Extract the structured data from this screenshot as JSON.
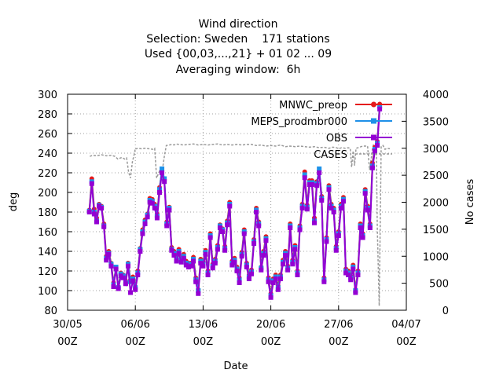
{
  "chart_data": {
    "type": "line",
    "title_lines": [
      "Wind direction",
      "Selection: Sweden    171 stations",
      "Used {00,03,...,21} + 01 02 ... 09",
      "Averaging window:  6h"
    ],
    "xlabel": "Date",
    "ylabel": "deg",
    "y2label": "No cases",
    "xlim": [
      0,
      35
    ],
    "ylim": [
      80,
      300
    ],
    "y2lim": [
      0,
      4000
    ],
    "x_ticks": [
      {
        "value": 0,
        "line1": "30/05",
        "line2": "00Z"
      },
      {
        "value": 7,
        "line1": "06/06",
        "line2": "00Z"
      },
      {
        "value": 14,
        "line1": "13/06",
        "line2": "00Z"
      },
      {
        "value": 21,
        "line1": "20/06",
        "line2": "00Z"
      },
      {
        "value": 28,
        "line1": "27/06",
        "line2": "00Z"
      },
      {
        "value": 35,
        "line1": "04/07",
        "line2": "00Z"
      }
    ],
    "y_ticks": [
      80,
      100,
      120,
      140,
      160,
      180,
      200,
      220,
      240,
      260,
      280,
      300
    ],
    "y2_ticks": [
      0,
      500,
      1000,
      1500,
      2000,
      2500,
      3000,
      3500,
      4000
    ],
    "grid": true,
    "legend_position": "top-right",
    "x_unit_note": "days since 30/05 00Z",
    "series": [
      {
        "name": "MNWC_preop",
        "color": "#e41a1c",
        "x": [
          2.25,
          2.5,
          2.75,
          3.0,
          3.25,
          3.5,
          3.75,
          4.0,
          4.25,
          4.5,
          4.75,
          5.0,
          5.25,
          5.5,
          5.75,
          6.0,
          6.25,
          6.5,
          6.75,
          7.0,
          7.25,
          7.5,
          7.75,
          8.0,
          8.25,
          8.5,
          8.75,
          9.0,
          9.25,
          9.5,
          9.75,
          10.0,
          10.25,
          10.5,
          10.75,
          11.0,
          11.25,
          11.5,
          11.75,
          12.0,
          12.25,
          12.5,
          12.75,
          13.0,
          13.25,
          13.5,
          13.75,
          14.0,
          14.25,
          14.5,
          14.75,
          15.0,
          15.25,
          15.5,
          15.75,
          16.0,
          16.25,
          16.5,
          16.75,
          17.0,
          17.25,
          17.5,
          17.75,
          18.0,
          18.25,
          18.5,
          18.75,
          19.0,
          19.25,
          19.5,
          19.75,
          20.0,
          20.25,
          20.5,
          20.75,
          21.0,
          21.25,
          21.5,
          21.75,
          22.0,
          22.25,
          22.5,
          22.75,
          23.0,
          23.25,
          23.5,
          23.75,
          24.0,
          24.25,
          24.5,
          24.75,
          25.0,
          25.25,
          25.5,
          25.75,
          26.0,
          26.25,
          26.5,
          26.75,
          27.0,
          27.25,
          27.5,
          27.75,
          28.0,
          28.25,
          28.5,
          28.75,
          29.0,
          29.25,
          29.5,
          29.75,
          30.0,
          30.25,
          30.5,
          30.75,
          31.0,
          31.25,
          31.5,
          31.75,
          32.0,
          32.25
        ],
        "y": [
          182,
          214,
          183,
          174,
          188,
          186,
          168,
          135,
          140,
          128,
          108,
          123,
          104,
          118,
          116,
          110,
          128,
          111,
          114,
          104,
          120,
          143,
          162,
          172,
          178,
          194,
          193,
          188,
          178,
          205,
          222,
          213,
          170,
          185,
          144,
          140,
          134,
          142,
          133,
          137,
          130,
          128,
          128,
          134,
          113,
          101,
          132,
          129,
          141,
          120,
          158,
          127,
          132,
          146,
          167,
          163,
          145,
          171,
          190,
          130,
          133,
          124,
          113,
          139,
          162,
          128,
          116,
          121,
          152,
          184,
          170,
          124,
          140,
          155,
          113,
          97,
          112,
          116,
          105,
          116,
          131,
          140,
          125,
          168,
          131,
          146,
          120,
          166,
          188,
          221,
          187,
          212,
          212,
          174,
          211,
          222,
          196,
          113,
          154,
          207,
          188,
          184,
          145,
          160,
          188,
          195,
          122,
          120,
          115,
          126,
          101,
          120,
          168,
          158,
          203,
          186,
          168,
          230,
          246,
          252,
          290
        ]
      },
      {
        "name": "MEPS_prodmbr000",
        "color": "#1e90e8",
        "x": [
          2.25,
          2.5,
          2.75,
          3.0,
          3.25,
          3.5,
          3.75,
          4.0,
          4.25,
          4.5,
          4.75,
          5.0,
          5.25,
          5.5,
          5.75,
          6.0,
          6.25,
          6.5,
          6.75,
          7.0,
          7.25,
          7.5,
          7.75,
          8.0,
          8.25,
          8.5,
          8.75,
          9.0,
          9.25,
          9.5,
          9.75,
          10.0,
          10.25,
          10.5,
          10.75,
          11.0,
          11.25,
          11.5,
          11.75,
          12.0,
          12.25,
          12.5,
          12.75,
          13.0,
          13.25,
          13.5,
          13.75,
          14.0,
          14.25,
          14.5,
          14.75,
          15.0,
          15.25,
          15.5,
          15.75,
          16.0,
          16.25,
          16.5,
          16.75,
          17.0,
          17.25,
          17.5,
          17.75,
          18.0,
          18.25,
          18.5,
          18.75,
          19.0,
          19.25,
          19.5,
          19.75,
          20.0,
          20.25,
          20.5,
          20.75,
          21.0,
          21.25,
          21.5,
          21.75,
          22.0,
          22.25,
          22.5,
          22.75,
          23.0,
          23.25,
          23.5,
          23.75,
          24.0,
          24.25,
          24.5,
          24.75,
          25.0,
          25.25,
          25.5,
          25.75,
          26.0,
          26.25,
          26.5,
          26.75,
          27.0,
          27.25,
          27.5,
          27.75,
          28.0,
          28.25,
          28.5,
          28.75,
          29.0,
          29.25,
          29.5,
          29.75,
          30.0,
          30.25,
          30.5,
          30.75,
          31.0,
          31.25,
          31.5,
          31.75,
          32.0,
          32.25
        ],
        "y": [
          181,
          211,
          180,
          171,
          187,
          185,
          166,
          133,
          138,
          127,
          106,
          124,
          103,
          117,
          115,
          108,
          127,
          109,
          112,
          103,
          118,
          142,
          160,
          170,
          177,
          192,
          191,
          186,
          176,
          203,
          224,
          214,
          168,
          184,
          142,
          138,
          132,
          140,
          131,
          135,
          128,
          126,
          127,
          132,
          111,
          100,
          130,
          127,
          139,
          118,
          156,
          125,
          130,
          144,
          166,
          162,
          143,
          169,
          188,
          128,
          131,
          122,
          111,
          137,
          160,
          126,
          114,
          119,
          150,
          182,
          168,
          123,
          138,
          153,
          111,
          95,
          110,
          114,
          103,
          114,
          129,
          138,
          123,
          166,
          129,
          144,
          118,
          164,
          186,
          218,
          185,
          210,
          210,
          171,
          209,
          224,
          194,
          111,
          152,
          205,
          186,
          182,
          143,
          158,
          186,
          193,
          120,
          118,
          113,
          124,
          100,
          118,
          166,
          156,
          201,
          184,
          166,
          227,
          244,
          250,
          288
        ]
      },
      {
        "name": "OBS",
        "color": "#9400d3",
        "x": [
          2.25,
          2.5,
          2.75,
          3.0,
          3.25,
          3.5,
          3.75,
          4.0,
          4.25,
          4.5,
          4.75,
          5.0,
          5.25,
          5.5,
          5.75,
          6.0,
          6.25,
          6.5,
          6.75,
          7.0,
          7.25,
          7.5,
          7.75,
          8.0,
          8.25,
          8.5,
          8.75,
          9.0,
          9.25,
          9.5,
          9.75,
          10.0,
          10.25,
          10.5,
          10.75,
          11.0,
          11.25,
          11.5,
          11.75,
          12.0,
          12.25,
          12.5,
          12.75,
          13.0,
          13.25,
          13.5,
          13.75,
          14.0,
          14.25,
          14.5,
          14.75,
          15.0,
          15.25,
          15.5,
          15.75,
          16.0,
          16.25,
          16.5,
          16.75,
          17.0,
          17.25,
          17.5,
          17.75,
          18.0,
          18.25,
          18.5,
          18.75,
          19.0,
          19.25,
          19.5,
          19.75,
          20.0,
          20.25,
          20.5,
          20.75,
          21.0,
          21.25,
          21.5,
          21.75,
          22.0,
          22.25,
          22.5,
          22.75,
          23.0,
          23.25,
          23.5,
          23.75,
          24.0,
          24.25,
          24.5,
          24.75,
          25.0,
          25.25,
          25.5,
          25.75,
          26.0,
          26.25,
          26.5,
          26.75,
          27.0,
          27.25,
          27.5,
          27.75,
          28.0,
          28.25,
          28.5,
          28.75,
          29.0,
          29.25,
          29.5,
          29.75,
          30.0,
          30.25,
          30.5,
          30.75,
          31.0,
          31.25,
          31.5,
          31.75,
          32.0,
          32.25
        ],
        "y": [
          180,
          209,
          178,
          170,
          186,
          184,
          165,
          131,
          137,
          125,
          104,
          122,
          102,
          115,
          113,
          107,
          125,
          98,
          110,
          101,
          116,
          140,
          158,
          168,
          175,
          190,
          189,
          184,
          174,
          200,
          220,
          211,
          166,
          182,
          141,
          136,
          130,
          138,
          129,
          133,
          126,
          124,
          125,
          130,
          109,
          97,
          128,
          125,
          137,
          116,
          154,
          123,
          128,
          142,
          164,
          160,
          141,
          167,
          186,
          126,
          129,
          120,
          108,
          135,
          158,
          124,
          112,
          117,
          148,
          180,
          166,
          121,
          136,
          151,
          109,
          93,
          108,
          112,
          101,
          112,
          127,
          136,
          121,
          164,
          127,
          142,
          116,
          162,
          184,
          215,
          183,
          208,
          208,
          169,
          207,
          220,
          192,
          109,
          150,
          203,
          184,
          180,
          141,
          156,
          184,
          191,
          118,
          116,
          111,
          122,
          98,
          116,
          164,
          154,
          199,
          182,
          164,
          225,
          242,
          248,
          285
        ]
      }
    ],
    "cases": {
      "name": "CASES",
      "color": "#999999",
      "axis": "right",
      "x": [
        2.3,
        2.6,
        3.0,
        3.5,
        4.0,
        4.5,
        4.9,
        5.2,
        5.6,
        5.9,
        6.1,
        6.3,
        6.5,
        6.7,
        6.9,
        7.0,
        7.1,
        7.3,
        7.6,
        8.0,
        8.4,
        8.8,
        9.0,
        9.2,
        9.5,
        9.75,
        10.0,
        10.2,
        10.5,
        10.8,
        11.0,
        11.2,
        11.5,
        12.0,
        12.5,
        13.0,
        13.5,
        14.0,
        14.5,
        15.0,
        15.5,
        16.0,
        16.5,
        17.0,
        17.5,
        18.0,
        18.5,
        19.0,
        19.5,
        20.0,
        20.5,
        21.0,
        21.5,
        22.0,
        22.5,
        23.0,
        23.5,
        24.0,
        24.5,
        25.0,
        25.5,
        26.0,
        26.5,
        27.0,
        27.4,
        27.8,
        28.0,
        28.3,
        28.7,
        29.0,
        29.2,
        29.35,
        29.5,
        29.65,
        29.8,
        30.0,
        30.5,
        31.0,
        31.2,
        31.4,
        31.5,
        31.6,
        31.75,
        31.9,
        32.0,
        32.2,
        32.4,
        32.6,
        32.8,
        33.0,
        33.3
      ],
      "y": [
        2850,
        2870,
        2860,
        2880,
        2860,
        2870,
        2850,
        2800,
        2830,
        2800,
        2820,
        2560,
        2450,
        2750,
        2900,
        3000,
        2990,
        3000,
        2990,
        3000,
        2990,
        2980,
        3000,
        2450,
        2580,
        2550,
        2850,
        3050,
        3060,
        3070,
        3060,
        3080,
        3070,
        3060,
        3070,
        3080,
        3060,
        3070,
        3060,
        3070,
        3080,
        3060,
        3070,
        3060,
        3070,
        3060,
        3070,
        3070,
        3050,
        3060,
        3040,
        3050,
        3040,
        3060,
        3030,
        3040,
        3030,
        3040,
        3030,
        3020,
        3030,
        3010,
        3020,
        3000,
        3020,
        3010,
        2990,
        3010,
        3000,
        3010,
        3000,
        2650,
        2950,
        2680,
        3000,
        3010,
        3040,
        3040,
        2600,
        2850,
        3000,
        3060,
        3050,
        3040,
        1500,
        80,
        3040,
        3050,
        2980,
        3000,
        2990
      ]
    }
  }
}
